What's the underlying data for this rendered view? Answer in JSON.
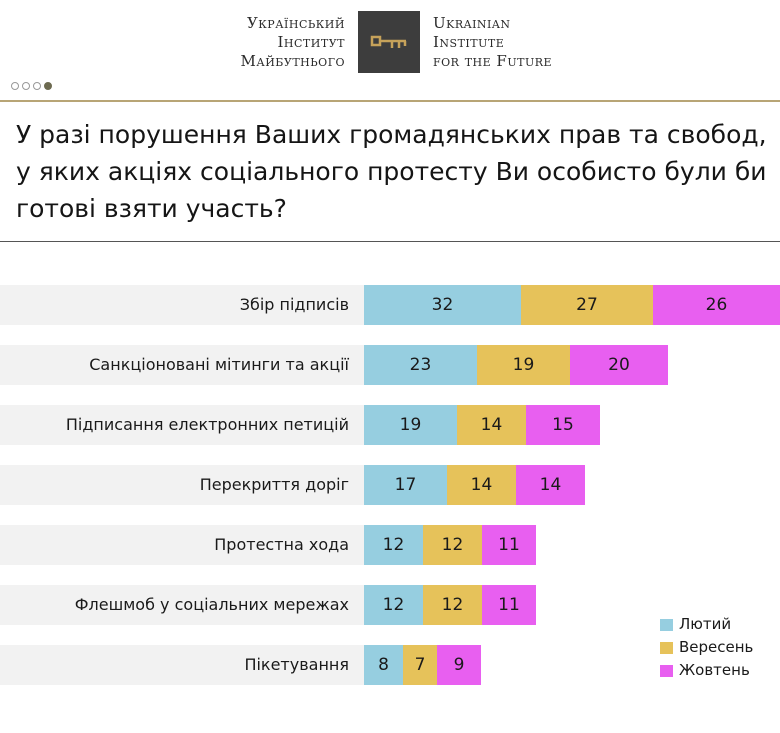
{
  "header": {
    "logo_ua": [
      "Український",
      "Інститут",
      "Майбутнього"
    ],
    "logo_en": [
      "Ukrainian",
      "Institute",
      "for the Future"
    ],
    "logo_icon": "key-icon",
    "pager": {
      "total": 4,
      "active": 4
    }
  },
  "colors": {
    "rule": "#b8a576",
    "row_bg": "#f2f2f2",
    "series": [
      "#96cee0",
      "#e6c25a",
      "#e85ff0"
    ]
  },
  "chart_data": {
    "type": "bar",
    "orientation": "horizontal",
    "stacked": true,
    "title": "У разі порушення Ваших громадянських прав та свобод, у яких акціях соціального протесту Ви особисто були би готові взяти участь?",
    "categories": [
      "Збір підписів",
      "Санкціоновані мітинги та акції",
      "Підписання електронних петицій",
      "Перекриття доріг",
      "Протестна хода",
      "Флешмоб у соціальних мережах",
      "Пікетування"
    ],
    "series": [
      {
        "name": "Лютий",
        "values": [
          32,
          23,
          19,
          17,
          12,
          12,
          8
        ]
      },
      {
        "name": "Вересень",
        "values": [
          27,
          19,
          14,
          14,
          12,
          12,
          7
        ]
      },
      {
        "name": "Жовтень",
        "values": [
          26,
          20,
          15,
          14,
          11,
          11,
          9
        ]
      }
    ],
    "legend_position": "bottom-right",
    "grid": false
  }
}
